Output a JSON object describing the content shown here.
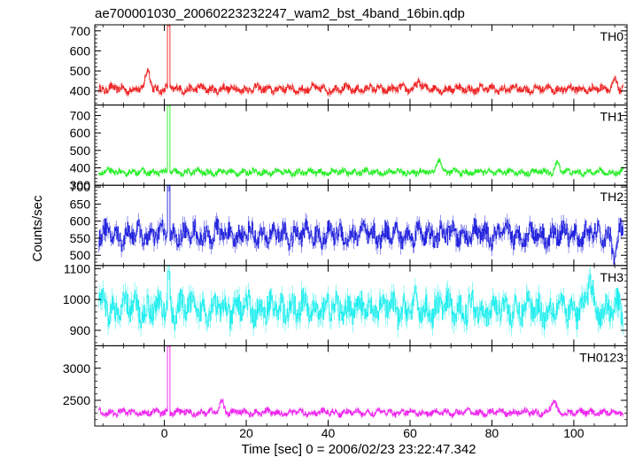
{
  "chart_data": {
    "type": "line",
    "title": "ae700001030_20060223232247_wam2_bst_4band_16bin.qdp",
    "xlabel": "Time [sec] 0 = 2006/02/23 23:22:47.342",
    "ylabel": "Counts/sec",
    "xlim": [
      -17,
      113
    ],
    "xticks": [
      0,
      20,
      40,
      60,
      80,
      100
    ],
    "grid": false,
    "error_bars": true,
    "panels": [
      {
        "label": "TH0",
        "color": "#ee2222",
        "ylim": [
          330,
          730
        ],
        "yticks": [
          400,
          500,
          600,
          700
        ],
        "baseline": 410,
        "noise": 16,
        "spike": {
          "x": 1,
          "y": 730
        },
        "features": [
          {
            "x": -4,
            "y": 540
          },
          {
            "x": 62,
            "y": 470
          },
          {
            "x": 110,
            "y": 470
          }
        ]
      },
      {
        "label": "TH1",
        "color": "#22ee22",
        "ylim": [
          300,
          760
        ],
        "yticks": [
          300,
          400,
          500,
          600,
          700
        ],
        "baseline": 375,
        "noise": 14,
        "spike": {
          "x": 1,
          "y": 760
        },
        "features": [
          {
            "x": 67,
            "y": 490
          },
          {
            "x": 96,
            "y": 450
          }
        ]
      },
      {
        "label": "TH2",
        "color": "#2222dd",
        "ylim": [
          470,
          705
        ],
        "yticks": [
          500,
          550,
          600,
          650,
          700
        ],
        "baseline": 560,
        "noise": 26,
        "spike": {
          "x": 1,
          "y": 705
        },
        "features": [
          {
            "x": 110,
            "y": 475
          }
        ]
      },
      {
        "label": "TH3",
        "color": "#22eeee",
        "ylim": [
          850,
          1110
        ],
        "yticks": [
          900,
          1000,
          1100
        ],
        "baseline": 970,
        "noise": 38,
        "spike": {
          "x": 1,
          "y": 1090
        },
        "features": [
          {
            "x": 104,
            "y": 1090
          }
        ]
      },
      {
        "label": "TH0123",
        "color": "#ee22ee",
        "ylim": [
          2100,
          3350
        ],
        "yticks": [
          2500,
          3000
        ],
        "baseline": 2310,
        "noise": 40,
        "spike": {
          "x": 1,
          "y": 3350
        },
        "features": [
          {
            "x": 14,
            "y": 2560
          },
          {
            "x": 95,
            "y": 2560
          }
        ]
      }
    ]
  }
}
